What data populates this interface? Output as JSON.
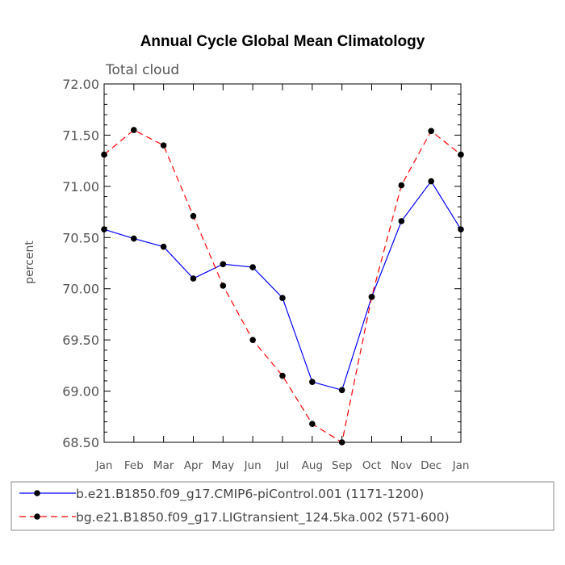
{
  "chart_data": {
    "type": "line",
    "title": "Annual Cycle Global Mean Climatology",
    "subtitle": "Total cloud",
    "ylabel": "percent",
    "xlabel": "",
    "categories": [
      "Jan",
      "Feb",
      "Mar",
      "Apr",
      "May",
      "Jun",
      "Jul",
      "Aug",
      "Sep",
      "Oct",
      "Nov",
      "Dec",
      "Jan"
    ],
    "ylim": [
      68.5,
      72.0
    ],
    "yticks": [
      "68.50",
      "69.00",
      "69.50",
      "70.00",
      "70.50",
      "71.00",
      "71.50",
      "72.00"
    ],
    "grid": false,
    "legend_position": "bottom",
    "series": [
      {
        "name": "b.e21.B1850.f09_g17.CMIP6-piControl.001 (1171-1200)",
        "color": "#0000ff",
        "line_style": "solid",
        "marker": "filled-circle",
        "values": [
          70.58,
          70.49,
          70.41,
          70.1,
          70.24,
          70.21,
          69.91,
          69.09,
          69.01,
          69.92,
          70.66,
          71.05,
          70.58
        ]
      },
      {
        "name": "bg.e21.B1850.f09_g17.LIGtransient_124.5ka.002 (571-600)",
        "color": "#ff0000",
        "line_style": "dashed",
        "marker": "filled-circle",
        "values": [
          71.31,
          71.55,
          71.4,
          70.71,
          70.03,
          69.5,
          69.15,
          68.68,
          68.5,
          69.92,
          71.01,
          71.54,
          71.31
        ]
      }
    ]
  }
}
